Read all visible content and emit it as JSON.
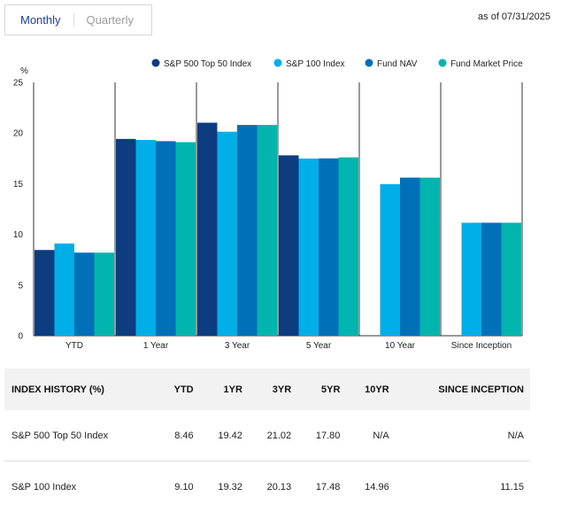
{
  "tabs": {
    "monthly": "Monthly",
    "quarterly": "Quarterly"
  },
  "as_of": "as of 07/31/2025",
  "colors": {
    "sp500": "#0d3c80",
    "sp100": "#00aee8",
    "nav": "#0070b8",
    "market": "#00b5ad",
    "header_bg": "#f2f2f2"
  },
  "chart_data": {
    "type": "bar",
    "ylabel": "%",
    "ylim": [
      0,
      25
    ],
    "yticks": [
      "0",
      "5",
      "10",
      "15",
      "20",
      "25"
    ],
    "categories": [
      "YTD",
      "1 Year",
      "3 Year",
      "5 Year",
      "10 Year",
      "Since Inception"
    ],
    "series": [
      {
        "name": "S&P 500 Top 50 Index",
        "values": [
          8.46,
          19.42,
          21.02,
          17.8,
          null,
          null
        ]
      },
      {
        "name": "S&P 100 Index",
        "values": [
          9.1,
          19.32,
          20.13,
          17.48,
          14.96,
          11.15
        ]
      },
      {
        "name": "Fund NAV",
        "values": [
          8.2,
          19.2,
          20.8,
          17.5,
          15.6,
          11.15
        ]
      },
      {
        "name": "Fund Market Price",
        "values": [
          8.2,
          19.1,
          20.8,
          17.6,
          15.6,
          11.15
        ]
      }
    ]
  },
  "table": {
    "headers": [
      "INDEX HISTORY (%)",
      "YTD",
      "1YR",
      "3YR",
      "5YR",
      "10YR",
      "SINCE INCEPTION"
    ],
    "rows": [
      [
        "S&P 500 Top 50 Index",
        "8.46",
        "19.42",
        "21.02",
        "17.80",
        "N/A",
        "N/A"
      ],
      [
        "S&P 100 Index",
        "9.10",
        "19.32",
        "20.13",
        "17.48",
        "14.96",
        "11.15"
      ]
    ]
  }
}
